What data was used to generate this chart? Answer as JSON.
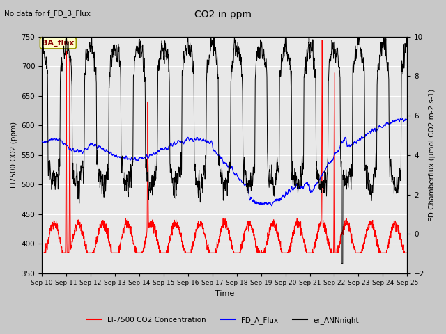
{
  "title": "CO2 in ppm",
  "top_left_text": "No data for f_FD_B_Flux",
  "xlabel": "Time",
  "ylabel_left": "LI7500 CO2 (ppm)",
  "ylabel_right": "FD Chamberflux (μmol CO2 m-2 s-1)",
  "ylim_left": [
    350,
    750
  ],
  "ylim_right": [
    -2,
    10
  ],
  "yticks_left": [
    350,
    400,
    450,
    500,
    550,
    600,
    650,
    700,
    750
  ],
  "yticks_right": [
    -2,
    0,
    2,
    4,
    6,
    8,
    10
  ],
  "xtick_labels": [
    "Sep 10",
    "Sep 11",
    "Sep 12",
    "Sep 13",
    "Sep 14",
    "Sep 15",
    "Sep 16",
    "Sep 17",
    "Sep 18",
    "Sep 19",
    "Sep 20",
    "Sep 21",
    "Sep 22",
    "Sep 23",
    "Sep 24",
    "Sep 25"
  ],
  "legend_entries": [
    {
      "label": "LI-7500 CO2 Concentration",
      "color": "red"
    },
    {
      "label": "FD_A_Flux",
      "color": "blue"
    },
    {
      "label": "er_ANNnight",
      "color": "black"
    }
  ],
  "ba_flux_box": {
    "text": "BA_flux",
    "facecolor": "#ffffcc",
    "edgecolor": "#999900",
    "textcolor": "#8b0000"
  },
  "fig_bg": "#c8c8c8",
  "axes_bg": "#e8e8e8",
  "figsize": [
    6.4,
    4.8
  ],
  "dpi": 100
}
